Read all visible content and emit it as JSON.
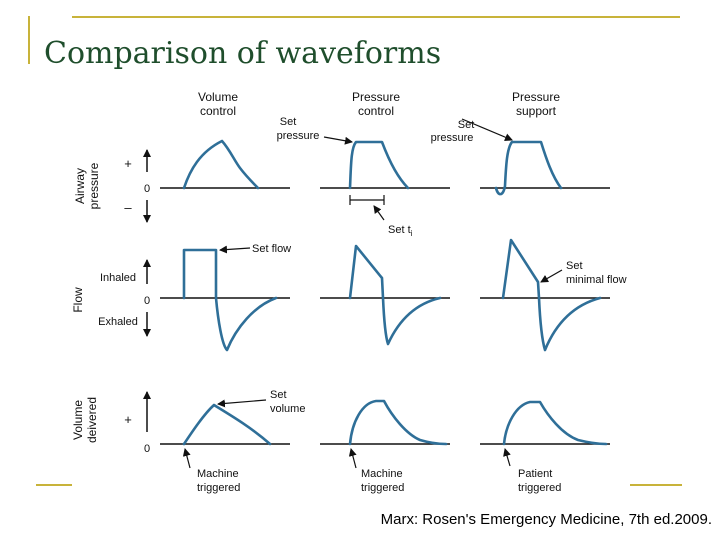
{
  "slide": {
    "title": "Comparison of waveforms",
    "caption": "Marx: Rosen's Emergency Medicine, 7th ed.2009."
  },
  "columns": [
    {
      "line1": "Volume",
      "line2": "control"
    },
    {
      "line1": "Pressure",
      "line2": "control"
    },
    {
      "line1": "Pressure",
      "line2": "support"
    }
  ],
  "rows": {
    "pressure": {
      "label1": "Airway",
      "label2": "pressure",
      "plus": "+",
      "zero": "0",
      "minus": "–"
    },
    "flow": {
      "label": "Flow",
      "inhaled": "Inhaled",
      "zero": "0",
      "exhaled": "Exhaled"
    },
    "volume": {
      "label1": "Volume",
      "label2": "deivered",
      "plus": "+",
      "zero": "0"
    }
  },
  "annotations": {
    "set_pressure": "Set\npressure",
    "set_pressure_2": "Set\npressure",
    "set_ti": "Set t",
    "set_ti_sub": "i",
    "set_flow": "Set flow",
    "set_minimal_flow": "Set\nminimal flow",
    "set_volume": "Set\nvolume"
  },
  "triggers": [
    {
      "line1": "Machine",
      "line2": "triggered"
    },
    {
      "line1": "Machine",
      "line2": "triggered"
    },
    {
      "line1": "Patient",
      "line2": "triggered"
    }
  ],
  "colors": {
    "waveform": "#2f6f98",
    "title": "#1f4e2c",
    "rule": "#c8b33a"
  }
}
